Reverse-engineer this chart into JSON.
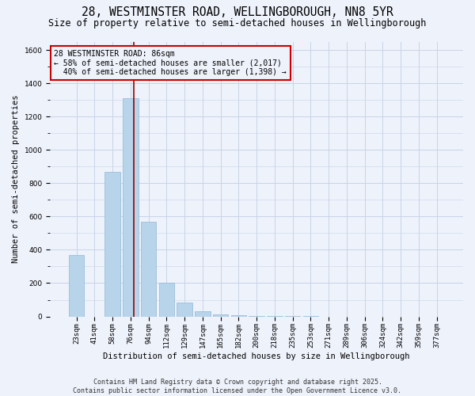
{
  "title": "28, WESTMINSTER ROAD, WELLINGBOROUGH, NN8 5YR",
  "subtitle": "Size of property relative to semi-detached houses in Wellingborough",
  "xlabel": "Distribution of semi-detached houses by size in Wellingborough",
  "ylabel": "Number of semi-detached properties",
  "categories": [
    "23sqm",
    "41sqm",
    "58sqm",
    "76sqm",
    "94sqm",
    "112sqm",
    "129sqm",
    "147sqm",
    "165sqm",
    "182sqm",
    "200sqm",
    "218sqm",
    "235sqm",
    "253sqm",
    "271sqm",
    "289sqm",
    "306sqm",
    "324sqm",
    "342sqm",
    "359sqm",
    "377sqm"
  ],
  "values": [
    370,
    0,
    870,
    1310,
    570,
    200,
    85,
    30,
    12,
    6,
    4,
    2,
    1,
    1,
    0,
    0,
    0,
    0,
    0,
    0,
    0
  ],
  "bar_color": "#b8d4ea",
  "bar_edge_color": "#90b8d8",
  "property_sqm": 86,
  "property_bar_index": 3,
  "property_label": "28 WESTMINSTER ROAD: 86sqm",
  "pct_smaller": 58,
  "n_smaller": 2017,
  "pct_larger": 40,
  "n_larger": 1398,
  "vline_color": "#990000",
  "annotation_box_color": "#cc0000",
  "ylim": [
    0,
    1650
  ],
  "yticks": [
    0,
    200,
    400,
    600,
    800,
    1000,
    1200,
    1400,
    1600
  ],
  "footnote1": "Contains HM Land Registry data © Crown copyright and database right 2025.",
  "footnote2": "Contains public sector information licensed under the Open Government Licence v3.0.",
  "bg_color": "#eef2fb",
  "grid_color": "#c8d4e8",
  "title_fontsize": 10.5,
  "subtitle_fontsize": 8.5,
  "axis_label_fontsize": 7.5,
  "ylabel_fontsize": 7.5,
  "tick_fontsize": 6.5,
  "annotation_fontsize": 7,
  "footnote_fontsize": 6
}
